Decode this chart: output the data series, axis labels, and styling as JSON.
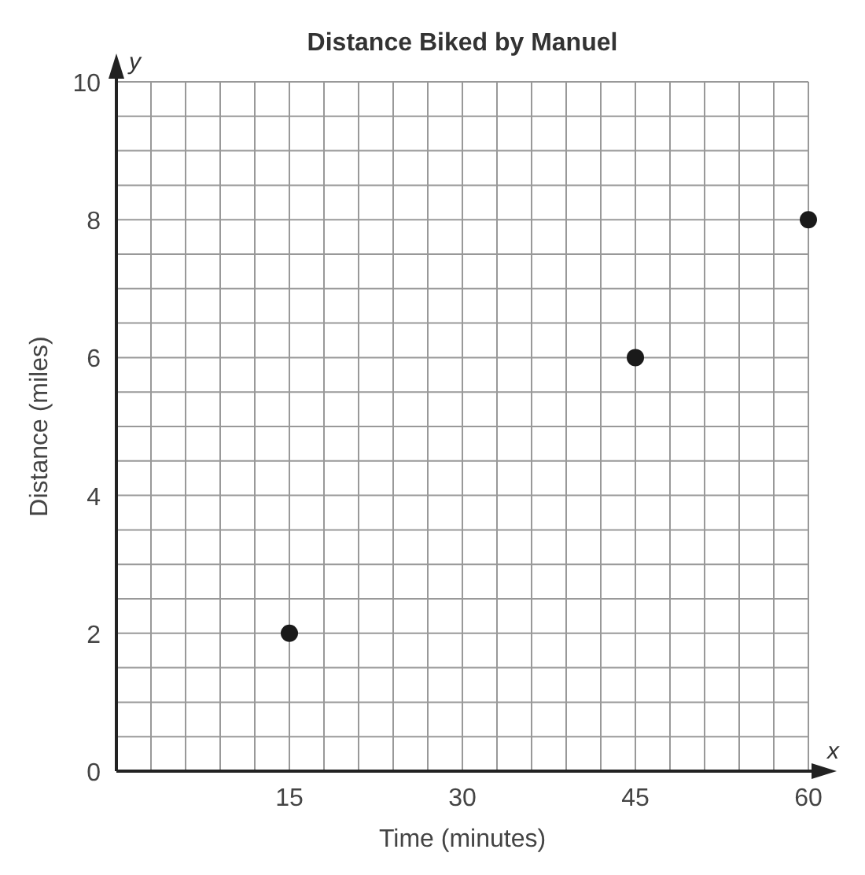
{
  "chart_data": {
    "type": "scatter",
    "title": "Distance Biked by Manuel",
    "xlabel": "Time (minutes)",
    "ylabel": "Distance (miles)",
    "annotations": [
      "y",
      "x"
    ],
    "x": [
      15,
      45,
      60
    ],
    "values": [
      2,
      6,
      8
    ],
    "color": "#1a1a1a",
    "marker": "circle",
    "grid": true,
    "xlim": [
      0,
      60
    ],
    "ylim": [
      0,
      10
    ],
    "xticks": [
      {
        "value": 0,
        "label": null
      },
      {
        "value": 3,
        "label": null
      },
      {
        "value": 6,
        "label": null
      },
      {
        "value": 9,
        "label": null
      },
      {
        "value": 12,
        "label": null
      },
      15,
      {
        "value": 18,
        "label": null
      },
      {
        "value": 21,
        "label": null
      },
      {
        "value": 24,
        "label": null
      },
      {
        "value": 27,
        "label": null
      },
      30,
      {
        "value": 33,
        "label": null
      },
      {
        "value": 36,
        "label": null
      },
      {
        "value": 39,
        "label": null
      },
      {
        "value": 42,
        "label": null
      },
      45,
      {
        "value": 48,
        "label": null
      },
      {
        "value": 51,
        "label": null
      },
      {
        "value": 54,
        "label": null
      },
      {
        "value": 57,
        "label": null
      },
      60
    ],
    "yticks": [
      0,
      {
        "value": 0.5,
        "label": null
      },
      {
        "value": 1,
        "label": null
      },
      {
        "value": 1.5,
        "label": null
      },
      2,
      {
        "value": 2.5,
        "label": null
      },
      {
        "value": 3,
        "label": null
      },
      {
        "value": 3.5,
        "label": null
      },
      4,
      {
        "value": 4.5,
        "label": null
      },
      {
        "value": 5,
        "label": null
      },
      {
        "value": 5.5,
        "label": null
      },
      6,
      {
        "value": 6.5,
        "label": null
      },
      {
        "value": 7,
        "label": null
      },
      {
        "value": 7.5,
        "label": null
      },
      8,
      {
        "value": 8.5,
        "label": null
      },
      {
        "value": 9,
        "label": null
      },
      {
        "value": 9.5,
        "label": null
      },
      10
    ]
  }
}
